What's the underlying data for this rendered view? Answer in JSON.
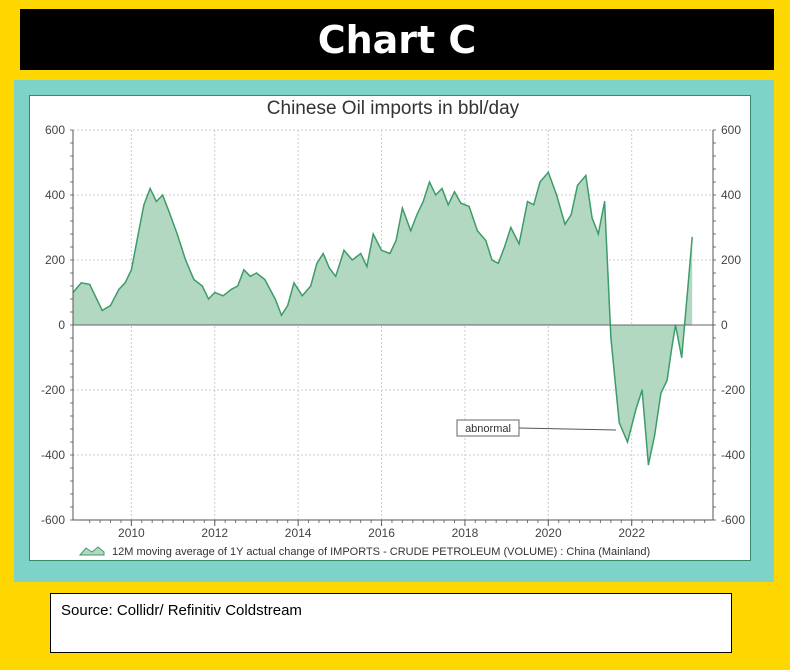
{
  "banner": {
    "title": "Chart C"
  },
  "source": {
    "text": "Source:  Collidr/ Refinitiv Coldstream"
  },
  "colors": {
    "fill": "#B2D8C2",
    "line": "#3E9B6A",
    "accent": "#000000",
    "background": "#FFD700",
    "frame": "#7DD3C8"
  },
  "chart_data": {
    "type": "area",
    "title": "Chinese Oil imports in bbl/day",
    "xlabel": "",
    "ylabel": "",
    "ylim": [
      -600,
      600
    ],
    "yticks": [
      -600,
      -400,
      -200,
      0,
      200,
      400,
      600
    ],
    "xticks": [
      "2010",
      "2012",
      "2014",
      "2016",
      "2018",
      "2020",
      "2022"
    ],
    "grid": true,
    "legend": "bottom",
    "series": [
      {
        "name": "12M moving average of 1Y actual change of IMPORTS - CRUDE PETROLEUM (VOLUME) : China (Mainland)",
        "x": [
          2008.6,
          2008.8,
          2009.0,
          2009.3,
          2009.5,
          2009.7,
          2009.85,
          2010.0,
          2010.15,
          2010.3,
          2010.45,
          2010.6,
          2010.75,
          2010.9,
          2011.1,
          2011.3,
          2011.5,
          2011.7,
          2011.85,
          2012.0,
          2012.2,
          2012.4,
          2012.55,
          2012.7,
          2012.85,
          2013.0,
          2013.2,
          2013.45,
          2013.6,
          2013.75,
          2013.9,
          2014.1,
          2014.3,
          2014.45,
          2014.6,
          2014.75,
          2014.9,
          2015.1,
          2015.3,
          2015.5,
          2015.65,
          2015.8,
          2016.0,
          2016.2,
          2016.35,
          2016.5,
          2016.7,
          2016.85,
          2017.0,
          2017.15,
          2017.3,
          2017.45,
          2017.6,
          2017.75,
          2017.9,
          2018.1,
          2018.3,
          2018.5,
          2018.65,
          2018.8,
          2018.95,
          2019.1,
          2019.3,
          2019.5,
          2019.65,
          2019.8,
          2020.0,
          2020.2,
          2020.4,
          2020.55,
          2020.7,
          2020.9,
          2021.05,
          2021.2,
          2021.35,
          2021.5,
          2021.7,
          2021.9,
          2022.1,
          2022.25,
          2022.4,
          2022.55,
          2022.7,
          2022.85,
          2022.95,
          2023.05,
          2023.2,
          2023.35,
          2023.45
        ],
        "values": [
          100,
          130,
          125,
          45,
          60,
          110,
          130,
          170,
          270,
          370,
          420,
          380,
          400,
          350,
          280,
          200,
          140,
          120,
          80,
          100,
          90,
          110,
          120,
          170,
          150,
          160,
          140,
          80,
          30,
          60,
          130,
          90,
          120,
          190,
          220,
          175,
          150,
          230,
          200,
          220,
          180,
          280,
          230,
          220,
          260,
          360,
          290,
          340,
          380,
          440,
          400,
          420,
          370,
          410,
          375,
          365,
          290,
          260,
          200,
          190,
          240,
          300,
          250,
          380,
          370,
          440,
          470,
          400,
          310,
          340,
          430,
          460,
          330,
          280,
          380,
          -40,
          -300,
          -360,
          -260,
          -200,
          -430,
          -340,
          -210,
          -170,
          -80,
          0,
          -100,
          120,
          270
        ]
      }
    ]
  }
}
